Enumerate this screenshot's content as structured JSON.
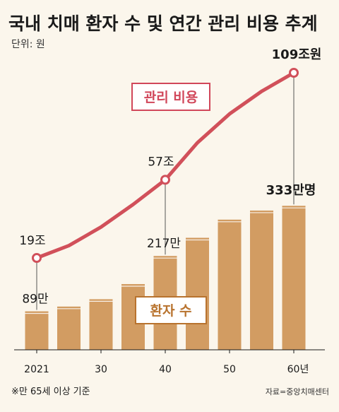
{
  "title": "국내 치매 환자 수 및 연간 관리 비용 추계",
  "unit": "단위: 원",
  "footnote": "※만 65세 이상 기준",
  "source": "자료=중앙치매센터",
  "legend": {
    "cost": "관리 비용",
    "patients": "환자 수"
  },
  "colors": {
    "background": "#fbf6ec",
    "bar": "#d29c62",
    "line": "#d1505a",
    "marker_fill": "#ffffff",
    "cost_label": "#d1475a",
    "patient_label": "#b8732e"
  },
  "chart_data": {
    "type": "bar+line",
    "x_ticks": [
      "2021",
      "30",
      "40",
      "50",
      "60년"
    ],
    "series": [
      {
        "name": "환자 수",
        "type": "bar",
        "x": [
          2021,
          2025,
          2030,
          2035,
          2040,
          2045,
          2050,
          2055,
          2060
        ],
        "values": [
          89,
          100,
          117,
          152,
          217,
          259,
          301,
          322,
          333
        ],
        "unit": "만명"
      },
      {
        "name": "관리 비용",
        "type": "line",
        "x": [
          2021,
          2025,
          2030,
          2035,
          2040,
          2045,
          2050,
          2055,
          2060
        ],
        "values": [
          19,
          25,
          34,
          45,
          57,
          75,
          89,
          100,
          109
        ],
        "unit": "조원"
      }
    ],
    "data_labels": {
      "patients": [
        {
          "index": 0,
          "text": "89만"
        },
        {
          "index": 4,
          "text": "217만"
        },
        {
          "index": 8,
          "text": "333만명"
        }
      ],
      "cost": [
        {
          "index": 0,
          "text": "19조"
        },
        {
          "index": 4,
          "text": "57조"
        },
        {
          "index": 8,
          "text": "109조원"
        }
      ]
    }
  }
}
